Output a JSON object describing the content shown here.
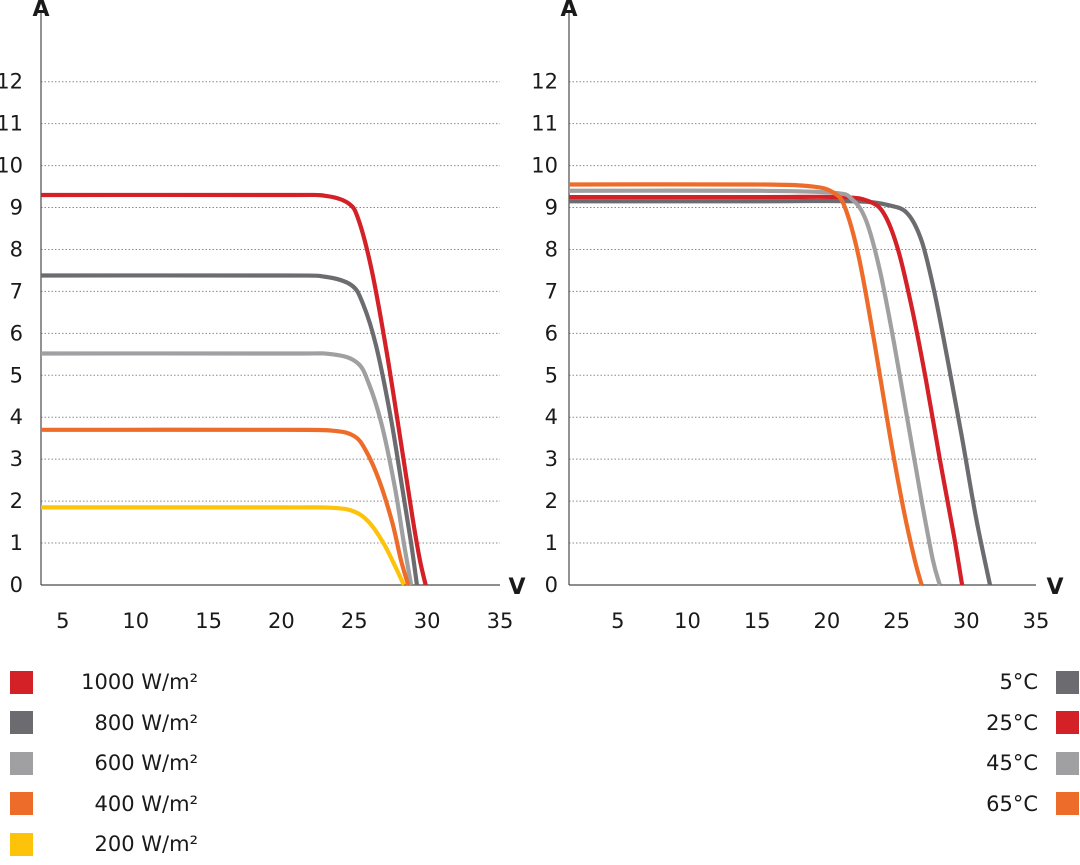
{
  "chart_data": [
    {
      "id": "irradiance",
      "type": "line",
      "ylabel": "A",
      "xlabel": "V",
      "xlim": [
        3.5,
        35
      ],
      "ylim": [
        0,
        12.9
      ],
      "x_ticks": [
        5,
        10,
        15,
        20,
        25,
        30,
        35
      ],
      "y_ticks": [
        0,
        1,
        2,
        3,
        4,
        5,
        6,
        7,
        8,
        9,
        10,
        11,
        12
      ],
      "series": [
        {
          "name": "1000 W/m²",
          "color": "#d42027",
          "points": [
            [
              3.5,
              9.3
            ],
            [
              20,
              9.3
            ],
            [
              23,
              9.28
            ],
            [
              24.6,
              9.1
            ],
            [
              25.3,
              8.7
            ],
            [
              26.2,
              7.5
            ],
            [
              27.2,
              5.6
            ],
            [
              28.2,
              3.4
            ],
            [
              29.0,
              1.6
            ],
            [
              29.5,
              0.6
            ],
            [
              29.9,
              0
            ]
          ]
        },
        {
          "name": "800 W/m²",
          "color": "#6c6c70",
          "points": [
            [
              3.5,
              7.38
            ],
            [
              20,
              7.38
            ],
            [
              23,
              7.35
            ],
            [
              24.8,
              7.15
            ],
            [
              25.6,
              6.7
            ],
            [
              26.5,
              5.7
            ],
            [
              27.5,
              4.0
            ],
            [
              28.3,
              2.3
            ],
            [
              28.9,
              1.0
            ],
            [
              29.3,
              0
            ]
          ]
        },
        {
          "name": "600 W/m²",
          "color": "#a0a0a2",
          "points": [
            [
              3.5,
              5.52
            ],
            [
              20,
              5.52
            ],
            [
              23.5,
              5.5
            ],
            [
              25.2,
              5.3
            ],
            [
              26.0,
              4.8
            ],
            [
              26.9,
              3.8
            ],
            [
              27.8,
              2.3
            ],
            [
              28.4,
              1.0
            ],
            [
              28.9,
              0
            ]
          ]
        },
        {
          "name": "400 W/m²",
          "color": "#ee6c2a",
          "points": [
            [
              3.5,
              3.7
            ],
            [
              20,
              3.7
            ],
            [
              23.5,
              3.68
            ],
            [
              25.0,
              3.55
            ],
            [
              25.8,
              3.2
            ],
            [
              26.7,
              2.5
            ],
            [
              27.6,
              1.5
            ],
            [
              28.2,
              0.6
            ],
            [
              28.7,
              0
            ]
          ]
        },
        {
          "name": "200 W/m²",
          "color": "#fcc30a",
          "points": [
            [
              3.5,
              1.85
            ],
            [
              20,
              1.85
            ],
            [
              23.5,
              1.84
            ],
            [
              25.0,
              1.75
            ],
            [
              26.0,
              1.5
            ],
            [
              27.0,
              1.0
            ],
            [
              27.8,
              0.45
            ],
            [
              28.4,
              0
            ]
          ]
        }
      ]
    },
    {
      "id": "temperature",
      "type": "line",
      "ylabel": "A",
      "xlabel": "V",
      "xlim": [
        1.5,
        35
      ],
      "ylim": [
        0,
        12.9
      ],
      "x_ticks": [
        5,
        10,
        15,
        20,
        25,
        30,
        35
      ],
      "y_ticks": [
        0,
        1,
        2,
        3,
        4,
        5,
        6,
        7,
        8,
        9,
        10,
        11,
        12
      ],
      "series": [
        {
          "name": "5°C",
          "color": "#6c6c70",
          "points": [
            [
              1.5,
              9.15
            ],
            [
              15,
              9.15
            ],
            [
              22,
              9.15
            ],
            [
              24.5,
              9.05
            ],
            [
              25.8,
              8.85
            ],
            [
              26.8,
              8.2
            ],
            [
              27.7,
              7.0
            ],
            [
              28.7,
              5.3
            ],
            [
              29.7,
              3.5
            ],
            [
              30.7,
              1.6
            ],
            [
              31.7,
              0
            ]
          ]
        },
        {
          "name": "25°C",
          "color": "#d42027",
          "points": [
            [
              1.5,
              9.25
            ],
            [
              15,
              9.25
            ],
            [
              21,
              9.25
            ],
            [
              23,
              9.15
            ],
            [
              24.1,
              8.85
            ],
            [
              25.1,
              8.0
            ],
            [
              26.1,
              6.6
            ],
            [
              27.1,
              4.9
            ],
            [
              28.1,
              3.0
            ],
            [
              29.1,
              1.2
            ],
            [
              29.7,
              0
            ]
          ]
        },
        {
          "name": "45°C",
          "color": "#a0a0a2",
          "points": [
            [
              1.5,
              9.4
            ],
            [
              15,
              9.4
            ],
            [
              20.5,
              9.35
            ],
            [
              21.8,
              9.2
            ],
            [
              22.8,
              8.7
            ],
            [
              23.8,
              7.5
            ],
            [
              24.8,
              5.8
            ],
            [
              25.8,
              3.9
            ],
            [
              26.8,
              2.0
            ],
            [
              27.6,
              0.6
            ],
            [
              28.1,
              0
            ]
          ]
        },
        {
          "name": "65°C",
          "color": "#ee6c2a",
          "points": [
            [
              1.5,
              9.55
            ],
            [
              15,
              9.55
            ],
            [
              19,
              9.5
            ],
            [
              20.5,
              9.35
            ],
            [
              21.3,
              9.0
            ],
            [
              22.3,
              7.8
            ],
            [
              23.4,
              5.8
            ],
            [
              24.5,
              3.6
            ],
            [
              25.5,
              1.8
            ],
            [
              26.3,
              0.6
            ],
            [
              26.8,
              0
            ]
          ]
        }
      ]
    }
  ],
  "legend_left": [
    {
      "label": "1000 W/m²",
      "color": "#d42027"
    },
    {
      "label": "800 W/m²",
      "color": "#6c6c70"
    },
    {
      "label": "600 W/m²",
      "color": "#a0a0a2"
    },
    {
      "label": "400 W/m²",
      "color": "#ee6c2a"
    },
    {
      "label": "200 W/m²",
      "color": "#fcc30a"
    }
  ],
  "legend_right": [
    {
      "label": "5°C",
      "color": "#6c6c70"
    },
    {
      "label": "25°C",
      "color": "#d42027"
    },
    {
      "label": "45°C",
      "color": "#a0a0a2"
    },
    {
      "label": "65°C",
      "color": "#ee6c2a"
    }
  ]
}
